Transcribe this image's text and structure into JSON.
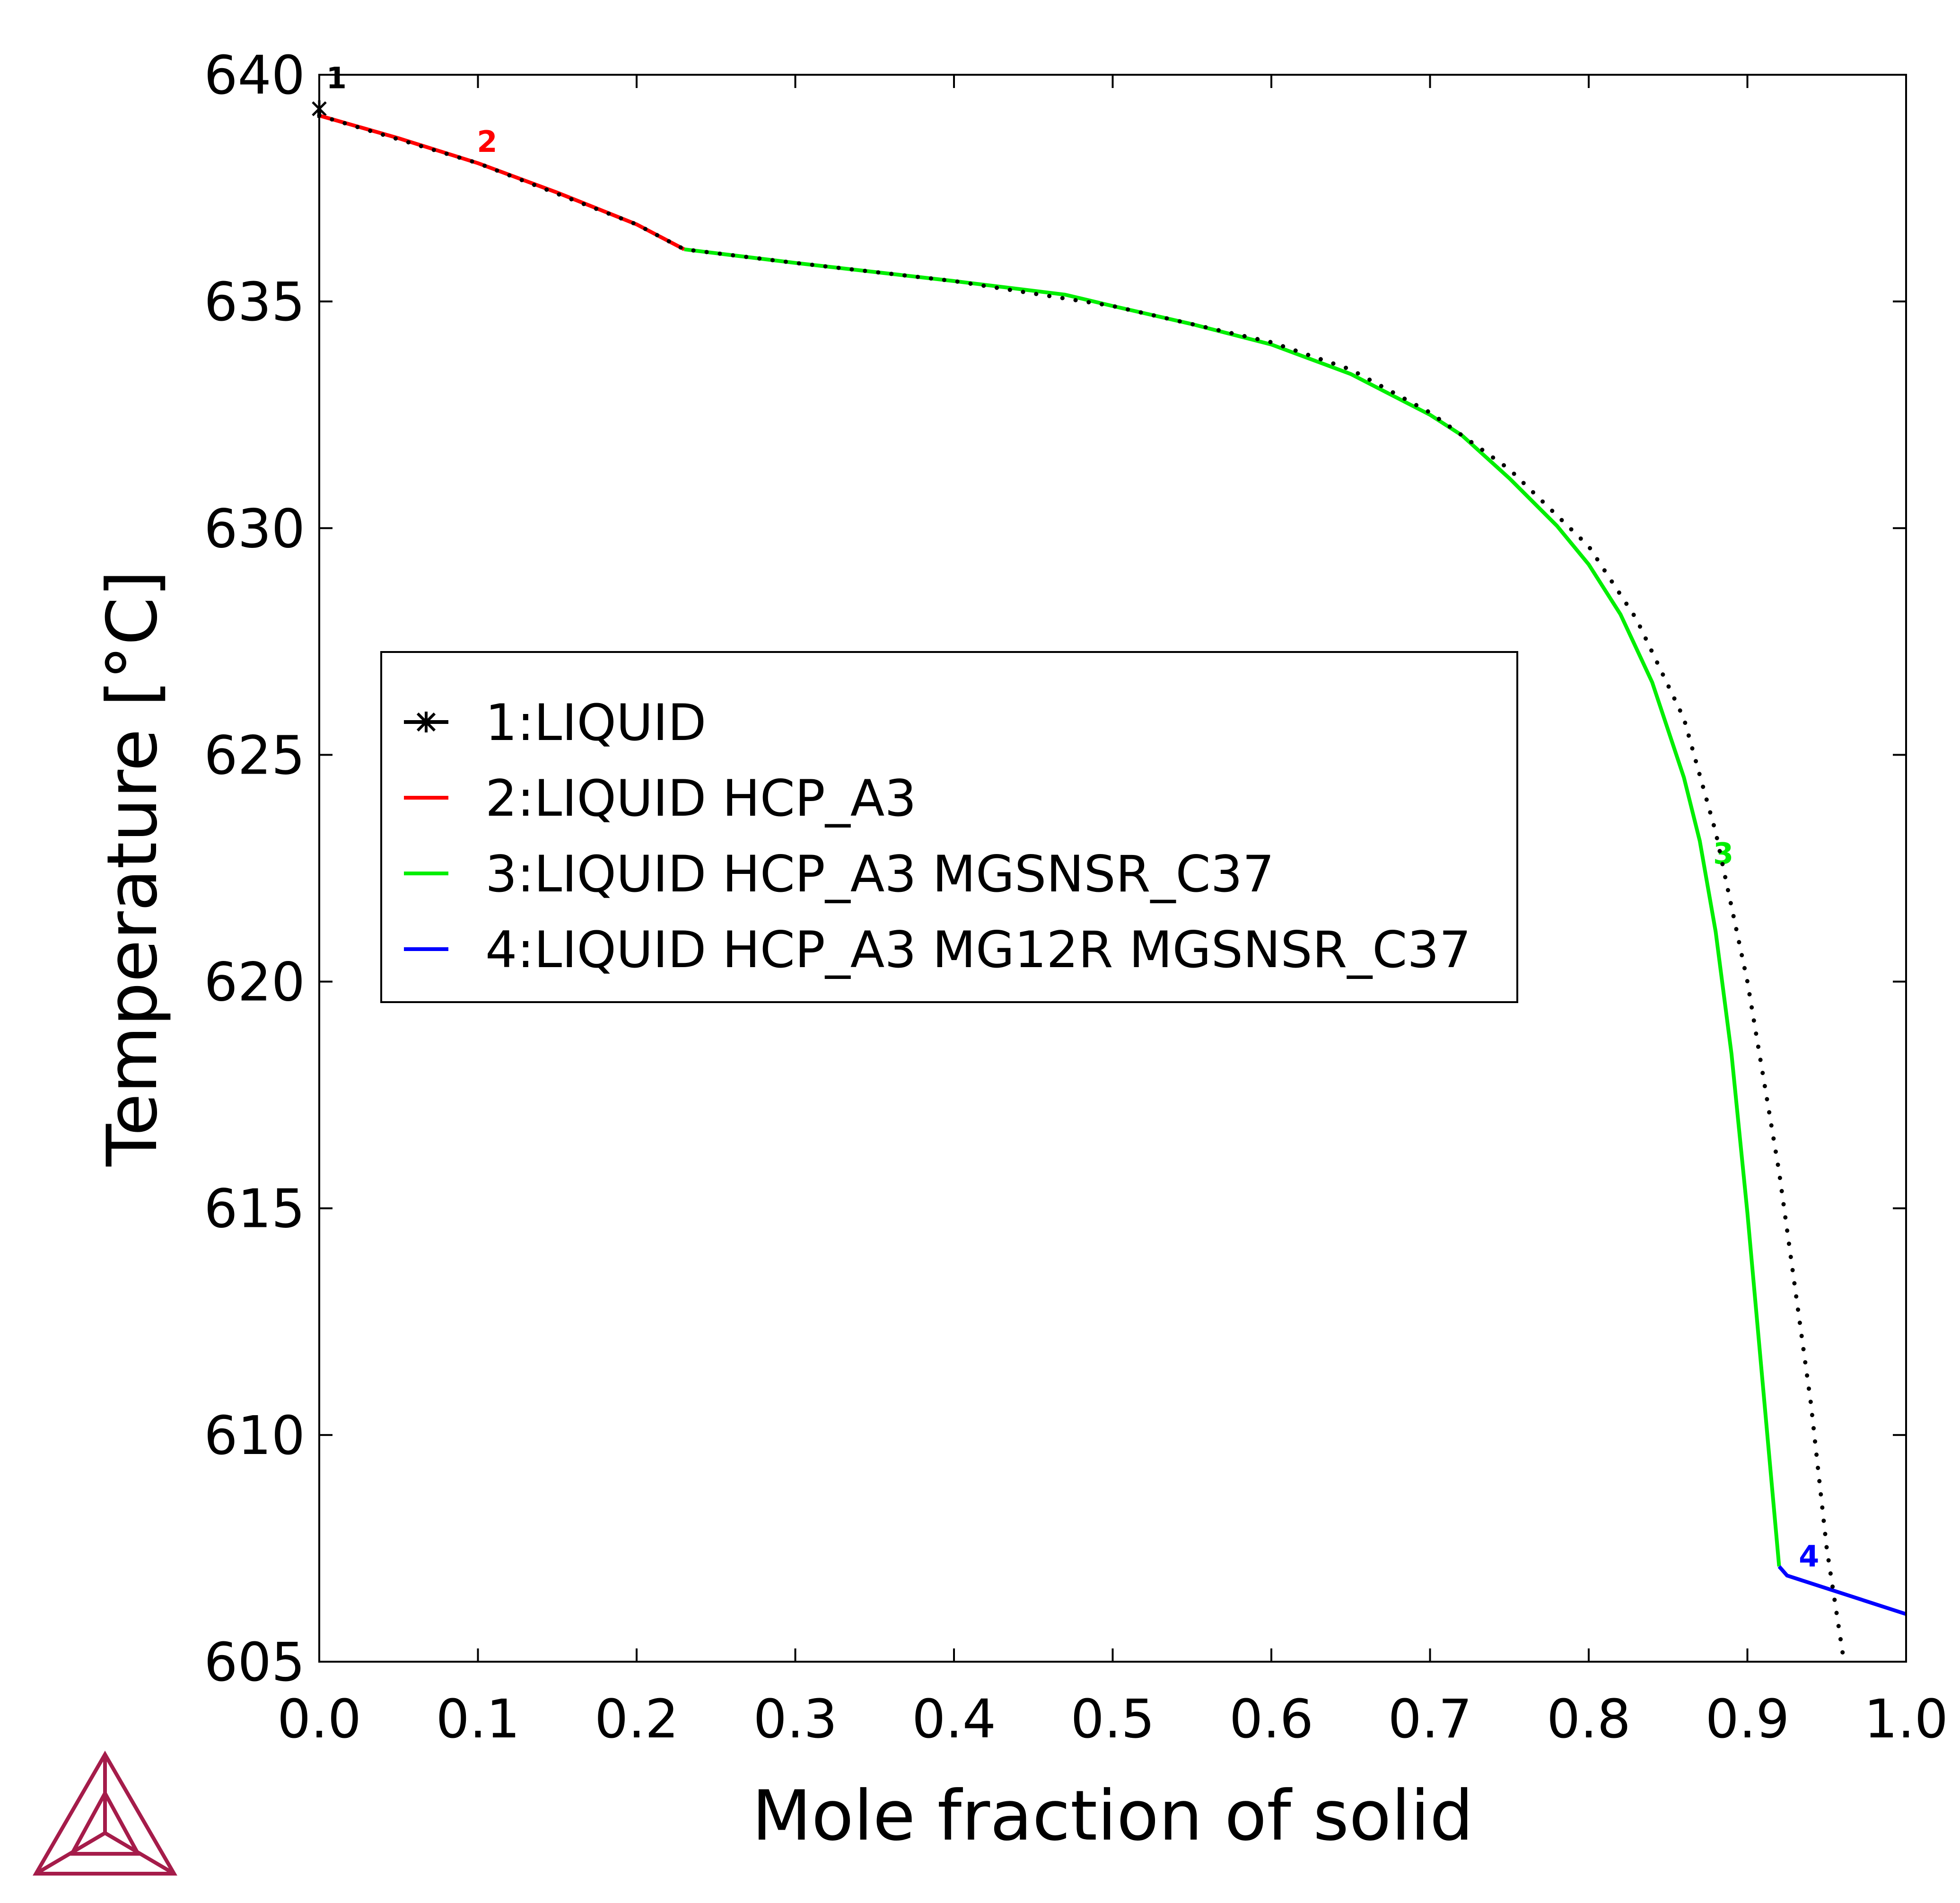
{
  "chart_data": {
    "type": "line",
    "xlabel": "Mole fraction of solid",
    "ylabel": "Temperature [°C]",
    "xlim": [
      0.0,
      1.0
    ],
    "ylim": [
      605,
      640
    ],
    "x_ticks": [
      "0.0",
      "0.1",
      "0.2",
      "0.3",
      "0.4",
      "0.5",
      "0.6",
      "0.7",
      "0.8",
      "0.9",
      "1.0"
    ],
    "y_ticks": [
      "605",
      "610",
      "615",
      "620",
      "625",
      "630",
      "635",
      "640"
    ],
    "grid": false,
    "legend_position": "center-left",
    "series": [
      {
        "name": "1:LIQUID",
        "label": "1",
        "color": "#000000",
        "marker": "star",
        "x": [
          0.0,
          0.0
        ],
        "y": [
          639.25,
          639.05
        ]
      },
      {
        "name": "2:LIQUID HCP_A3",
        "label": "2",
        "color": "#ff0000",
        "x": [
          0.0,
          0.05,
          0.1,
          0.15,
          0.2,
          0.23
        ],
        "y": [
          639.1,
          638.6,
          638.05,
          637.4,
          636.7,
          636.15
        ]
      },
      {
        "name": "3:LIQUID HCP_A3 MGSNSR_C37",
        "label": "3",
        "color": "#00ee00",
        "x": [
          0.23,
          0.3,
          0.4,
          0.47,
          0.5,
          0.55,
          0.6,
          0.65,
          0.7,
          0.72,
          0.75,
          0.78,
          0.8,
          0.82,
          0.84,
          0.86,
          0.87,
          0.88,
          0.89,
          0.9,
          0.91,
          0.92
        ],
        "y": [
          636.15,
          635.85,
          635.45,
          635.15,
          634.9,
          634.5,
          634.05,
          633.4,
          632.5,
          632.05,
          631.1,
          630.05,
          629.2,
          628.1,
          626.6,
          624.5,
          623.1,
          621.1,
          618.4,
          614.9,
          611.0,
          607.1
        ]
      },
      {
        "name": "4:LIQUID HCP_A3 MG12R MGSNSR_C37",
        "label": "4",
        "color": "#0000ff",
        "x": [
          0.92,
          0.925,
          1.0
        ],
        "y": [
          607.1,
          606.9,
          606.05
        ]
      },
      {
        "style": "dotted",
        "color": "#000000",
        "x": [
          0.0,
          0.1,
          0.2,
          0.23,
          0.3,
          0.4,
          0.5,
          0.6,
          0.65,
          0.7,
          0.75,
          0.8,
          0.83,
          0.86,
          0.88,
          0.9,
          0.92,
          0.94,
          0.95,
          0.96
        ],
        "y": [
          639.1,
          638.05,
          636.7,
          636.15,
          635.85,
          635.45,
          634.9,
          634.1,
          633.5,
          632.55,
          631.3,
          629.6,
          628.0,
          625.8,
          623.3,
          620.0,
          615.8,
          610.7,
          607.5,
          605.2
        ]
      }
    ]
  }
}
